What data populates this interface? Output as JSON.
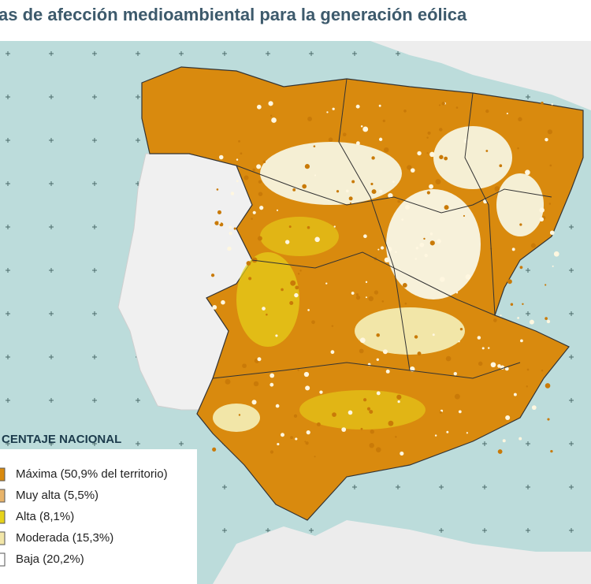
{
  "header": {
    "title": "as de afección medioambiental para la generación eólica"
  },
  "legend": {
    "title": "CENTAJE NACIONAL",
    "items": [
      {
        "label": "Máxima (50,9% del territorio)",
        "color": "#d98a0e"
      },
      {
        "label": "Muy alta (5,5%)",
        "color": "#e8b46a"
      },
      {
        "label": "Alta (8,1%)",
        "color": "#e6d21a"
      },
      {
        "label": "Moderada (15,3%)",
        "color": "#f2e6a8"
      },
      {
        "label": "Baja (20,2%)",
        "color": "#ffffff"
      }
    ]
  }
}
